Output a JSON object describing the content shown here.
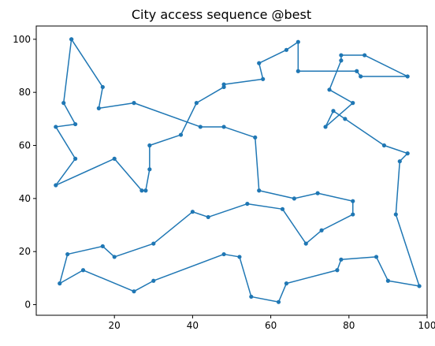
{
  "chart_data": {
    "type": "line",
    "title": "City access sequence @best",
    "xlabel": "",
    "ylabel": "",
    "xlim": [
      0,
      100
    ],
    "ylim": [
      -4,
      105
    ],
    "xticks": [
      20,
      40,
      60,
      80,
      100
    ],
    "yticks": [
      0,
      20,
      40,
      60,
      80,
      100
    ],
    "grid": false,
    "series": [
      {
        "color": "#1f77b4",
        "marker": "circle",
        "points": [
          [
            9,
            100
          ],
          [
            17,
            82
          ],
          [
            16,
            74
          ],
          [
            25,
            76
          ],
          [
            42,
            67
          ],
          [
            48,
            67
          ],
          [
            56,
            63
          ],
          [
            57,
            43
          ],
          [
            66,
            40
          ],
          [
            72,
            42
          ],
          [
            81,
            39
          ],
          [
            81,
            34
          ],
          [
            73,
            28
          ],
          [
            69,
            23
          ],
          [
            63,
            36
          ],
          [
            54,
            38
          ],
          [
            44,
            33
          ],
          [
            40,
            35
          ],
          [
            30,
            23
          ],
          [
            20,
            18
          ],
          [
            17,
            22
          ],
          [
            8,
            19
          ],
          [
            6,
            8
          ],
          [
            12,
            13
          ],
          [
            25,
            5
          ],
          [
            30,
            9
          ],
          [
            48,
            19
          ],
          [
            52,
            18
          ],
          [
            55,
            3
          ],
          [
            62,
            1
          ],
          [
            64,
            8
          ],
          [
            77,
            13
          ],
          [
            78,
            17
          ],
          [
            87,
            18
          ],
          [
            90,
            9
          ],
          [
            98,
            7
          ],
          [
            92,
            34
          ],
          [
            93,
            54
          ],
          [
            95,
            57
          ],
          [
            89,
            60
          ],
          [
            79,
            70
          ],
          [
            76,
            73
          ],
          [
            74,
            67
          ],
          [
            81,
            76
          ],
          [
            75,
            81
          ],
          [
            78,
            92
          ],
          [
            78,
            94
          ],
          [
            84,
            94
          ],
          [
            95,
            86
          ],
          [
            83,
            86
          ],
          [
            82,
            88
          ],
          [
            67,
            88
          ],
          [
            67,
            99
          ],
          [
            64,
            96
          ],
          [
            57,
            91
          ],
          [
            58,
            85
          ],
          [
            48,
            83
          ],
          [
            48,
            82
          ],
          [
            41,
            76
          ],
          [
            37,
            64
          ],
          [
            29,
            60
          ],
          [
            29,
            51
          ],
          [
            28,
            43
          ],
          [
            27,
            43
          ],
          [
            20,
            55
          ],
          [
            5,
            45
          ],
          [
            10,
            55
          ],
          [
            5,
            67
          ],
          [
            10,
            68
          ],
          [
            7,
            76
          ],
          [
            9,
            100
          ]
        ]
      }
    ]
  }
}
